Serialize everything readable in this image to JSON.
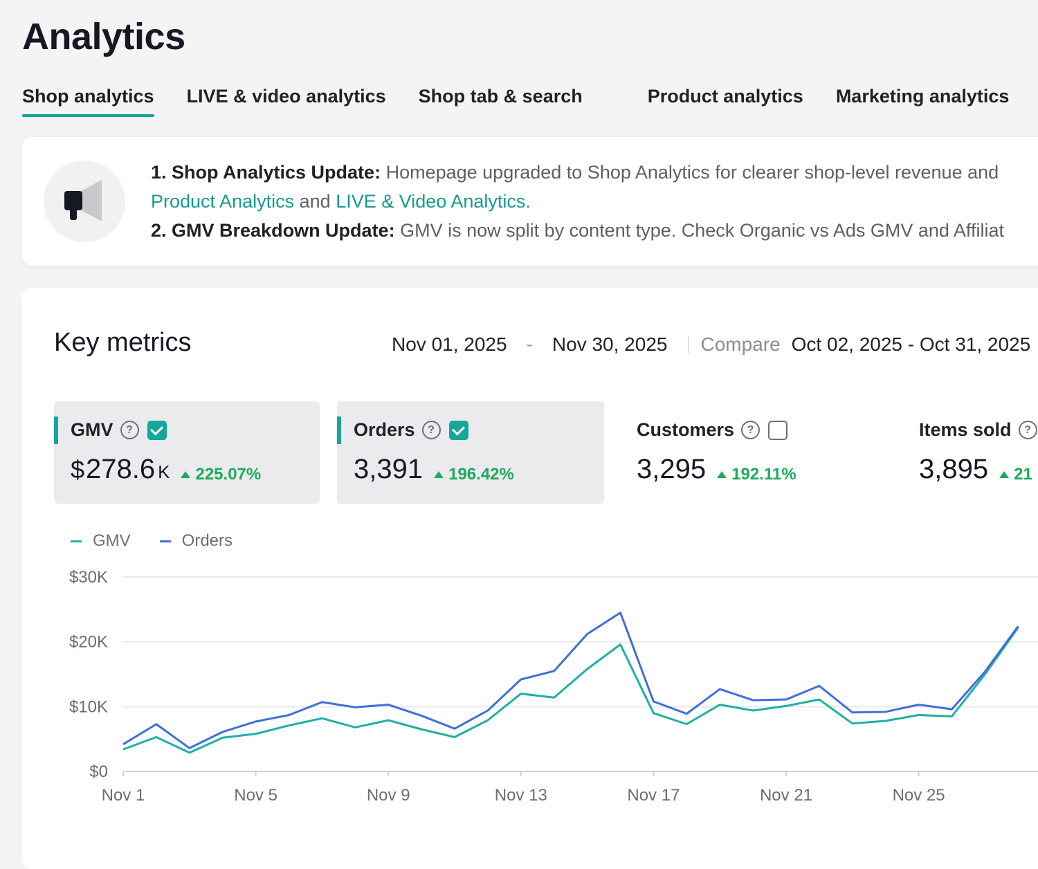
{
  "page": {
    "title": "Analytics"
  },
  "tabs": [
    {
      "label": "Shop analytics",
      "active": true
    },
    {
      "label": "LIVE & video analytics",
      "active": false
    },
    {
      "label": "Shop tab & search",
      "active": false
    },
    {
      "label": "Product analytics",
      "active": false
    },
    {
      "label": "Marketing analytics",
      "active": false
    }
  ],
  "notice": {
    "icon": "megaphone-icon",
    "line1_title": "1. Shop Analytics Update:",
    "line1_text": "Homepage upgraded to Shop Analytics for clearer shop-level revenue and",
    "link1": "Product Analytics",
    "link_and": "and",
    "link2": "LIVE & Video Analytics.",
    "line2_title": "2. GMV Breakdown Update:",
    "line2_text": "GMV is now split by content type. Check Organic vs Ads GMV and Affiliat"
  },
  "key_metrics": {
    "title": "Key metrics",
    "date_start": "Nov 01, 2025",
    "date_dash": "-",
    "date_end": "Nov 30, 2025",
    "compare_label": "Compare",
    "compare_range": "Oct 02, 2025 - Oct 31, 2025"
  },
  "metrics": [
    {
      "label": "GMV",
      "prefix": "$",
      "value": "278.6",
      "suffix": "K",
      "change": "225.07%",
      "selected": true
    },
    {
      "label": "Orders",
      "prefix": "",
      "value": "3,391",
      "suffix": "",
      "change": "196.42%",
      "selected": true
    },
    {
      "label": "Customers",
      "prefix": "",
      "value": "3,295",
      "suffix": "",
      "change": "192.11%",
      "selected": false
    },
    {
      "label": "Items sold",
      "prefix": "",
      "value": "3,895",
      "suffix": "",
      "change": "21",
      "selected": false
    }
  ],
  "colors": {
    "gmv": "#1fb0a3",
    "orders": "#3f6fd8",
    "accent": "#16a69a",
    "positive": "#1eaa5b"
  },
  "chart_data": {
    "type": "line",
    "legend": [
      "GMV",
      "Orders"
    ],
    "legend_position": "top-left",
    "y_ticks": [
      "$0",
      "$10K",
      "$20K",
      "$30K"
    ],
    "ylim": [
      0,
      30000
    ],
    "x_tick_labels": [
      "Nov 1",
      "Nov 5",
      "Nov 9",
      "Nov 13",
      "Nov 17",
      "Nov 21",
      "Nov 25",
      "N"
    ],
    "x": [
      "Nov 1",
      "Nov 2",
      "Nov 3",
      "Nov 4",
      "Nov 5",
      "Nov 6",
      "Nov 7",
      "Nov 8",
      "Nov 9",
      "Nov 10",
      "Nov 11",
      "Nov 12",
      "Nov 13",
      "Nov 14",
      "Nov 15",
      "Nov 16",
      "Nov 17",
      "Nov 18",
      "Nov 19",
      "Nov 20",
      "Nov 21",
      "Nov 22",
      "Nov 23",
      "Nov 24",
      "Nov 25",
      "Nov 26",
      "Nov 27",
      "Nov 28"
    ],
    "grid": true,
    "series": [
      {
        "name": "GMV",
        "values": [
          3400,
          5300,
          2900,
          5200,
          5800,
          7100,
          8200,
          6800,
          7900,
          6500,
          5300,
          7900,
          12000,
          11400,
          15800,
          19600,
          9000,
          7300,
          10300,
          9400,
          10100,
          11100,
          7400,
          7800,
          8700,
          8500,
          15000,
          22200
        ]
      },
      {
        "name": "Orders",
        "values": [
          4200,
          7300,
          3600,
          6100,
          7700,
          8700,
          10700,
          9900,
          10300,
          8600,
          6600,
          9400,
          14200,
          15500,
          21200,
          24500,
          10800,
          8900,
          12700,
          11000,
          11100,
          13200,
          9100,
          9200,
          10300,
          9600,
          15400,
          22400
        ]
      }
    ]
  }
}
